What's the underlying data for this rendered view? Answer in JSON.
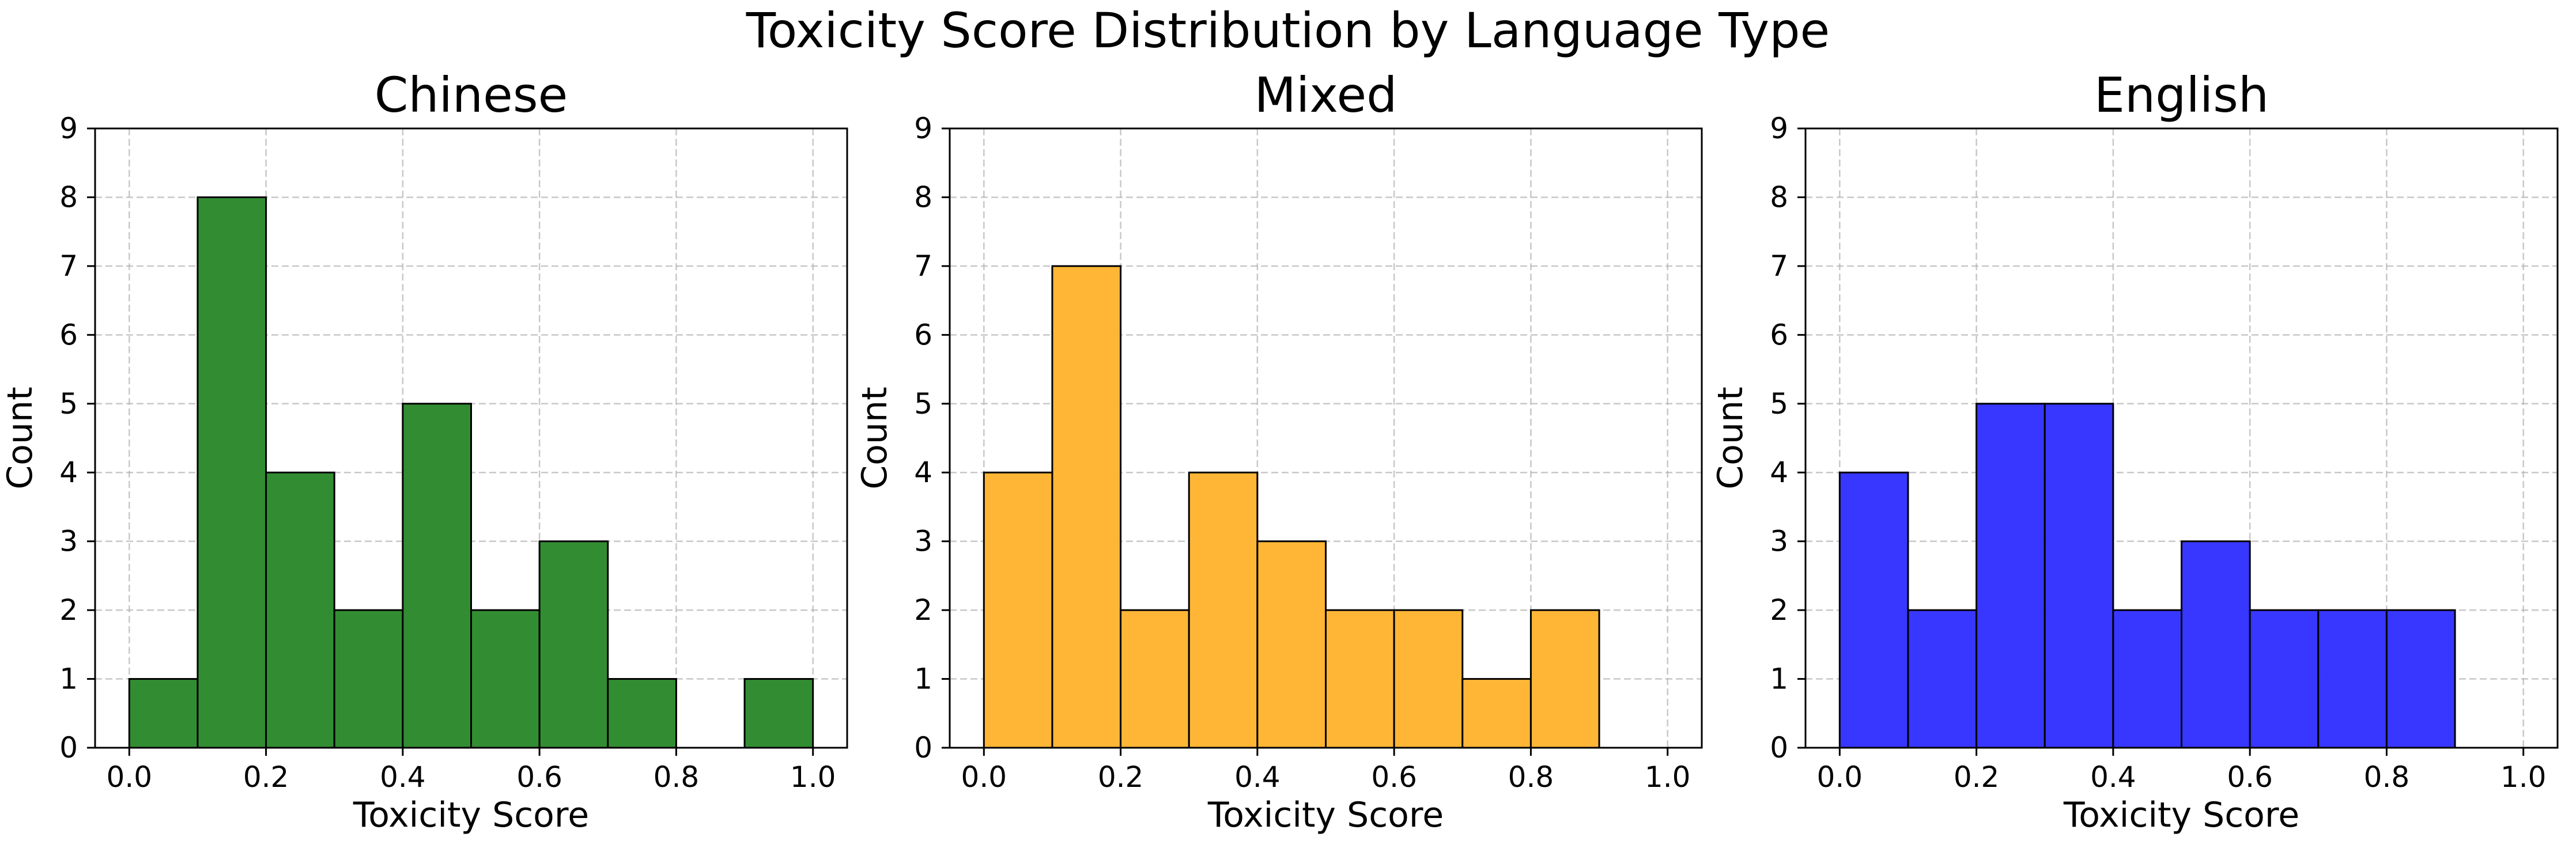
{
  "figure": {
    "title": "Toxicity Score Distribution by Language Type"
  },
  "chart_data": [
    {
      "type": "bar",
      "title": "Chinese",
      "xlabel": "Toxicity Score",
      "ylabel": "Count",
      "bin_edges": [
        0.0,
        0.1,
        0.2,
        0.3,
        0.4,
        0.5,
        0.6,
        0.7,
        0.8,
        0.9,
        1.0
      ],
      "values": [
        1,
        8,
        4,
        2,
        5,
        2,
        3,
        1,
        0,
        1
      ],
      "color": "#2e8b2e",
      "xlim": [
        -0.05,
        1.05
      ],
      "ylim": [
        0,
        9
      ],
      "xticks": [
        "0.0",
        "0.2",
        "0.4",
        "0.6",
        "0.8",
        "1.0"
      ],
      "yticks": [
        "0",
        "1",
        "2",
        "3",
        "4",
        "5",
        "6",
        "7",
        "8",
        "9"
      ],
      "grid": true
    },
    {
      "type": "bar",
      "title": "Mixed",
      "xlabel": "Toxicity Score",
      "ylabel": "Count",
      "bin_edges": [
        0.0,
        0.1,
        0.2,
        0.3,
        0.4,
        0.5,
        0.6,
        0.7,
        0.8,
        0.9,
        1.0
      ],
      "values": [
        4,
        7,
        2,
        4,
        3,
        2,
        2,
        1,
        2,
        0
      ],
      "color": "#ffb533",
      "xlim": [
        -0.05,
        1.05
      ],
      "ylim": [
        0,
        9
      ],
      "xticks": [
        "0.0",
        "0.2",
        "0.4",
        "0.6",
        "0.8",
        "1.0"
      ],
      "yticks": [
        "0",
        "1",
        "2",
        "3",
        "4",
        "5",
        "6",
        "7",
        "8",
        "9"
      ],
      "grid": true
    },
    {
      "type": "bar",
      "title": "English",
      "xlabel": "Toxicity Score",
      "ylabel": "Count",
      "bin_edges": [
        0.0,
        0.1,
        0.2,
        0.3,
        0.4,
        0.5,
        0.6,
        0.7,
        0.8,
        0.9,
        1.0
      ],
      "values": [
        4,
        2,
        5,
        5,
        2,
        3,
        2,
        2,
        2,
        0
      ],
      "color": "#3333ff",
      "xlim": [
        -0.05,
        1.05
      ],
      "ylim": [
        0,
        9
      ],
      "xticks": [
        "0.0",
        "0.2",
        "0.4",
        "0.6",
        "0.8",
        "1.0"
      ],
      "yticks": [
        "0",
        "1",
        "2",
        "3",
        "4",
        "5",
        "6",
        "7",
        "8",
        "9"
      ],
      "grid": true
    }
  ]
}
